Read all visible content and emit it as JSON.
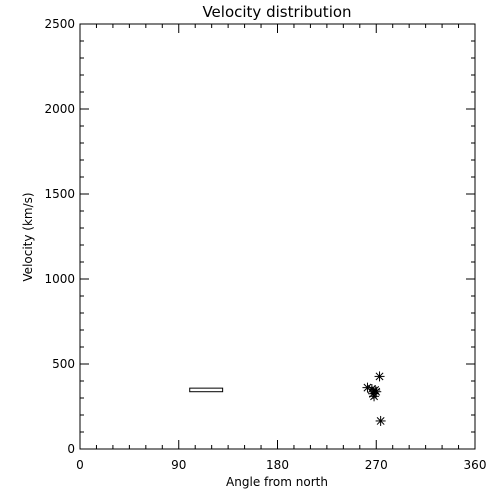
{
  "chart_data": {
    "type": "scatter",
    "title": "Velocity distribution",
    "xlabel": "Angle from north",
    "ylabel": "Velocity (km/s)",
    "xlim": [
      0,
      360
    ],
    "ylim": [
      0,
      2500
    ],
    "grid": false,
    "x_ticks": [
      0,
      90,
      180,
      270,
      360
    ],
    "y_ticks": [
      0,
      500,
      1000,
      1500,
      2000,
      2500
    ],
    "x_minor_step": 15,
    "y_minor_step": 100,
    "range_bar": {
      "x_start": 100,
      "x_end": 130,
      "y_low": 337,
      "y_high": 358
    },
    "series": [
      {
        "marker": "asterisk",
        "points": [
          [
            262,
            361
          ],
          [
            266,
            353
          ],
          [
            269,
            347
          ],
          [
            270,
            337
          ],
          [
            267,
            325
          ],
          [
            268,
            310
          ],
          [
            273,
            427
          ],
          [
            274,
            165
          ]
        ]
      }
    ],
    "colors": {
      "axes": "#000000",
      "marker": "#000000",
      "background": "#ffffff"
    }
  }
}
